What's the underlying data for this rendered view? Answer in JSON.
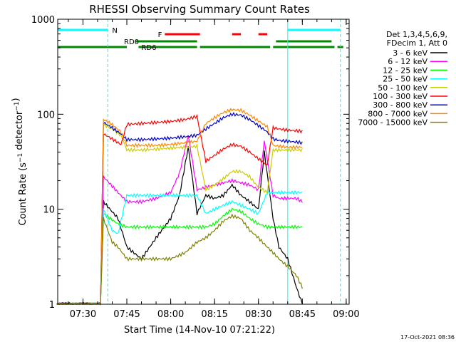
{
  "chart_data": {
    "type": "line",
    "title": "RHESSI Observing Summary Count Rates",
    "xlabel": "Start Time (14-Nov-10 07:21:22)",
    "ylabel": "Count Rate (s⁻¹ detector⁻¹)",
    "y_scale": "log",
    "ylim": [
      1,
      1000
    ],
    "xlim": [
      "07:21:22",
      "09:01:00"
    ],
    "x_ticks": [
      "07:30",
      "07:45",
      "08:00",
      "08:15",
      "08:30",
      "08:45",
      "09:00"
    ],
    "y_ticks": [
      "1",
      "10",
      "100",
      "1000"
    ],
    "legend_header": [
      "Det 1,3,4,5,6,9,",
      "FDecim 1, Att 0"
    ],
    "legend_position": "right",
    "footer_date": "17-Oct-2021 08:36",
    "flag_labels": {
      "night": "N",
      "flare": "F",
      "rd0": "RD0",
      "rd6": "RD6"
    },
    "flags": {
      "night": [
        [
          "07:21:22",
          "07:38:30"
        ],
        [
          "08:40:00",
          "08:58:00"
        ]
      ],
      "flare": [
        [
          "07:58:00",
          "08:10:00"
        ],
        [
          "08:21:00",
          "08:24:00"
        ],
        [
          "08:30:00",
          "08:33:00"
        ]
      ],
      "rd0": [
        [
          "07:48:00",
          "08:09:00"
        ],
        [
          "08:36:00",
          "08:55:00"
        ]
      ],
      "rd6": [
        [
          "07:21:22",
          "07:45:00"
        ],
        [
          "07:49:00",
          "08:09:00"
        ],
        [
          "08:10:00",
          "08:34:00"
        ],
        [
          "08:35:00",
          "08:56:00"
        ],
        [
          "08:57:00",
          "08:59:00"
        ]
      ]
    },
    "dashed_lines": [
      "07:38:30",
      "08:58:00"
    ],
    "solid_lines": [
      "07:21:22",
      "08:40:00"
    ],
    "series": [
      {
        "name": "3 - 6 keV",
        "color": "#000000",
        "x": [
          "07:21",
          "07:36",
          "07:37",
          "07:42",
          "07:45",
          "07:50",
          "07:55",
          "08:00",
          "08:03",
          "08:06",
          "08:09",
          "08:12",
          "08:15",
          "08:18",
          "08:21",
          "08:24",
          "08:27",
          "08:30",
          "08:32",
          "08:35",
          "08:37",
          "08:40",
          "08:43",
          "08:45"
        ],
        "y": [
          1,
          1,
          12,
          8,
          4,
          3,
          5,
          8,
          14,
          45,
          9,
          14,
          13,
          14,
          18,
          14,
          12,
          10,
          40,
          8,
          4,
          3,
          1.5,
          1
        ]
      },
      {
        "name": "6 - 12 keV",
        "color": "#ff00ff",
        "x": [
          "07:21",
          "07:36",
          "07:37",
          "07:42",
          "07:45",
          "07:50",
          "07:55",
          "08:00",
          "08:03",
          "08:06",
          "08:09",
          "08:12",
          "08:15",
          "08:18",
          "08:21",
          "08:24",
          "08:27",
          "08:30",
          "08:32",
          "08:35",
          "08:37",
          "08:40",
          "08:43",
          "08:45"
        ],
        "y": [
          1,
          1,
          22,
          15,
          12,
          12,
          13,
          15,
          24,
          60,
          16,
          17,
          18,
          19,
          20,
          19,
          18,
          16,
          52,
          14,
          13,
          13,
          13,
          12
        ]
      },
      {
        "name": "12 - 25 keV",
        "color": "#00ff00",
        "x": [
          "07:21",
          "07:36",
          "07:37",
          "07:42",
          "07:45",
          "07:50",
          "07:55",
          "08:00",
          "08:05",
          "08:09",
          "08:12",
          "08:15",
          "08:18",
          "08:21",
          "08:24",
          "08:27",
          "08:30",
          "08:33",
          "08:35",
          "08:37",
          "08:40",
          "08:43",
          "08:45"
        ],
        "y": [
          1,
          1,
          9,
          7,
          6.5,
          6.5,
          6.5,
          6.5,
          6.5,
          6.5,
          6.5,
          7,
          8.5,
          10,
          9.5,
          8,
          7,
          6.5,
          6.5,
          6.5,
          6.5,
          6.5,
          6.5
        ]
      },
      {
        "name": "25 - 50 keV",
        "color": "#00ffff",
        "x": [
          "07:21",
          "07:36",
          "07:37",
          "07:40",
          "07:42",
          "07:45",
          "07:50",
          "07:55",
          "08:00",
          "08:05",
          "08:09",
          "08:12",
          "08:15",
          "08:18",
          "08:21",
          "08:24",
          "08:27",
          "08:30",
          "08:33",
          "08:35",
          "08:37",
          "08:40",
          "08:43",
          "08:45"
        ],
        "y": [
          1,
          1,
          10,
          6,
          5.5,
          14,
          14,
          14,
          14,
          14,
          14,
          9,
          10,
          11,
          12,
          11,
          10,
          9,
          15,
          15,
          15,
          15,
          15,
          15
        ]
      },
      {
        "name": "50 - 100 keV",
        "color": "#cccc00",
        "x": [
          "07:21",
          "07:36",
          "07:37",
          "07:40",
          "07:43",
          "07:45",
          "07:50",
          "07:55",
          "08:00",
          "08:05",
          "08:09",
          "08:12",
          "08:15",
          "08:18",
          "08:21",
          "08:24",
          "08:27",
          "08:30",
          "08:33",
          "08:35",
          "08:37",
          "08:40",
          "08:43",
          "08:45"
        ],
        "y": [
          1,
          1,
          78,
          70,
          60,
          42,
          42,
          43,
          44,
          45,
          46,
          16,
          18,
          21,
          25,
          25,
          22,
          17,
          15,
          42,
          42,
          42,
          42,
          42
        ]
      },
      {
        "name": "100 - 300 keV",
        "color": "#ff0000",
        "x": [
          "07:21",
          "07:36",
          "07:37",
          "07:40",
          "07:43",
          "07:45",
          "07:50",
          "07:55",
          "08:00",
          "08:05",
          "08:09",
          "08:12",
          "08:15",
          "08:18",
          "08:21",
          "08:24",
          "08:27",
          "08:30",
          "08:33",
          "08:35",
          "08:37",
          "08:40",
          "08:43",
          "08:45"
        ],
        "y": [
          1,
          1,
          62,
          55,
          48,
          78,
          80,
          82,
          84,
          88,
          95,
          32,
          37,
          43,
          48,
          46,
          40,
          34,
          29,
          72,
          70,
          68,
          67,
          66
        ]
      },
      {
        "name": "300 - 800 keV",
        "color": "#0000cc",
        "x": [
          "07:21",
          "07:36",
          "07:37",
          "07:40",
          "07:43",
          "07:45",
          "07:50",
          "07:55",
          "08:00",
          "08:05",
          "08:09",
          "08:12",
          "08:15",
          "08:18",
          "08:21",
          "08:24",
          "08:27",
          "08:30",
          "08:33",
          "08:35",
          "08:37",
          "08:40",
          "08:43",
          "08:45"
        ],
        "y": [
          1,
          1,
          82,
          72,
          62,
          54,
          54,
          55,
          56,
          58,
          60,
          70,
          80,
          92,
          100,
          98,
          88,
          76,
          65,
          55,
          53,
          52,
          51,
          50
        ]
      },
      {
        "name": "800 - 7000 keV",
        "color": "#ff8800",
        "x": [
          "07:21",
          "07:36",
          "07:37",
          "07:40",
          "07:43",
          "07:45",
          "07:50",
          "07:55",
          "08:00",
          "08:05",
          "08:09",
          "08:12",
          "08:15",
          "08:18",
          "08:21",
          "08:24",
          "08:27",
          "08:30",
          "08:33",
          "08:35",
          "08:37",
          "08:40",
          "08:43",
          "08:45"
        ],
        "y": [
          1,
          1,
          88,
          78,
          65,
          47,
          47,
          47,
          48,
          50,
          52,
          80,
          92,
          104,
          112,
          110,
          98,
          85,
          74,
          47,
          46,
          45,
          45,
          45
        ]
      },
      {
        "name": "7000 - 15000 keV",
        "color": "#808000",
        "x": [
          "07:21",
          "07:36",
          "07:37",
          "07:40",
          "07:42",
          "07:45",
          "07:50",
          "07:55",
          "08:00",
          "08:05",
          "08:09",
          "08:12",
          "08:15",
          "08:18",
          "08:21",
          "08:24",
          "08:27",
          "08:30",
          "08:33",
          "08:35",
          "08:37",
          "08:40",
          "08:43",
          "08:45"
        ],
        "y": [
          1,
          1,
          8,
          4.5,
          4,
          3,
          3,
          3,
          3,
          3.5,
          4.5,
          5,
          6,
          7.5,
          8.5,
          8,
          6,
          5,
          4,
          3.5,
          3,
          2.5,
          2,
          1.5
        ]
      }
    ]
  }
}
